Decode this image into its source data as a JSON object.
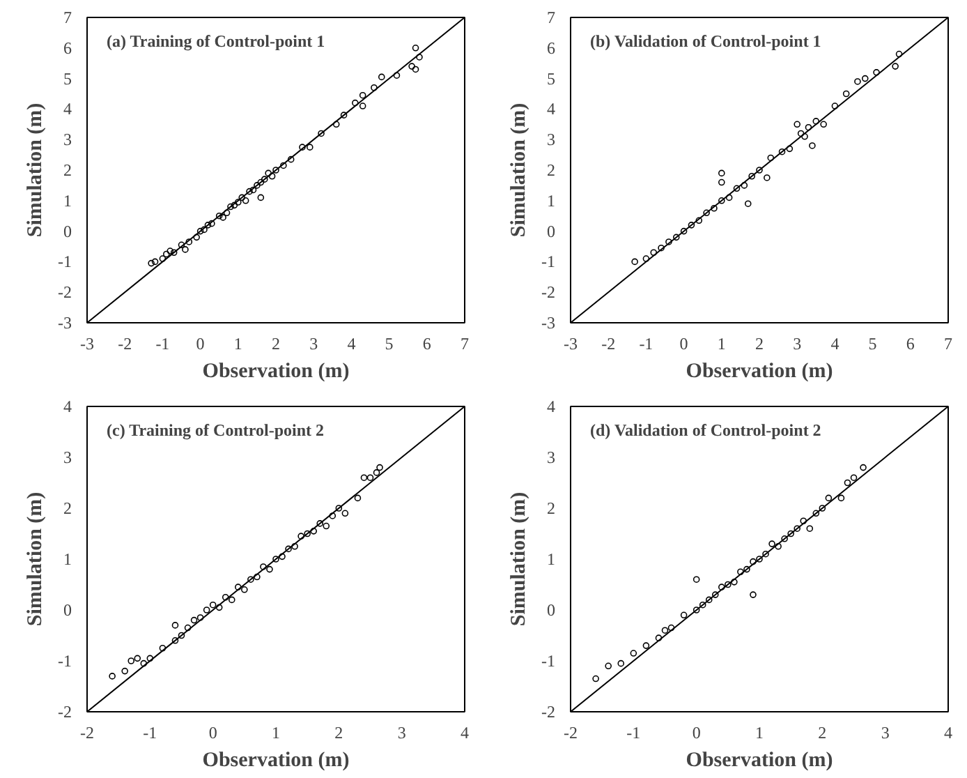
{
  "chart_data": [
    {
      "type": "scatter",
      "title": "(a) Training of Control-point 1",
      "xlabel": "Observation (m)",
      "ylabel": "Simulation (m)",
      "xlim": [
        -3,
        7
      ],
      "ylim": [
        -3,
        7
      ],
      "xticks": [
        -3,
        -2,
        -1,
        0,
        1,
        2,
        3,
        4,
        5,
        6,
        7
      ],
      "yticks": [
        -3,
        -2,
        -1,
        0,
        1,
        2,
        3,
        4,
        5,
        6,
        7
      ],
      "series": [
        {
          "marker": "circle",
          "color": "#000000",
          "x": [
            -1.3,
            -1.2,
            -1.0,
            -0.9,
            -0.8,
            -0.7,
            -0.5,
            -0.4,
            -0.3,
            -0.1,
            0,
            0.1,
            0.2,
            0.3,
            0.5,
            0.6,
            0.7,
            0.8,
            0.9,
            1.0,
            1.1,
            1.2,
            1.3,
            1.4,
            1.5,
            1.6,
            1.6,
            1.7,
            1.8,
            1.9,
            2.0,
            2.2,
            2.4,
            2.7,
            2.9,
            3.2,
            3.6,
            3.8,
            4.1,
            4.3,
            4.3,
            4.6,
            4.8,
            5.2,
            5.6,
            5.7,
            5.7,
            5.8
          ],
          "values": [
            -1.05,
            -1.0,
            -0.9,
            -0.75,
            -0.65,
            -0.7,
            -0.45,
            -0.6,
            -0.35,
            -0.2,
            0,
            0.05,
            0.2,
            0.25,
            0.5,
            0.45,
            0.6,
            0.8,
            0.85,
            0.95,
            1.1,
            1.0,
            1.3,
            1.35,
            1.5,
            1.6,
            1.1,
            1.7,
            1.9,
            1.8,
            2.0,
            2.15,
            2.35,
            2.75,
            2.75,
            3.2,
            3.5,
            3.8,
            4.2,
            4.1,
            4.45,
            4.7,
            5.05,
            5.1,
            5.4,
            5.3,
            6.0,
            5.7
          ]
        },
        {
          "type": "line",
          "color": "#000000",
          "x": [
            -3,
            7
          ],
          "values": [
            -3,
            7
          ]
        }
      ]
    },
    {
      "type": "scatter",
      "title": "(b) Validation of Control-point 1",
      "xlabel": "Observation (m)",
      "ylabel": "Simulation (m)",
      "xlim": [
        -3,
        7
      ],
      "ylim": [
        -3,
        7
      ],
      "xticks": [
        -3,
        -2,
        -1,
        0,
        1,
        2,
        3,
        4,
        5,
        6,
        7
      ],
      "yticks": [
        -3,
        -2,
        -1,
        0,
        1,
        2,
        3,
        4,
        5,
        6,
        7
      ],
      "series": [
        {
          "marker": "circle",
          "color": "#000000",
          "x": [
            -1.3,
            -1.0,
            -0.8,
            -0.6,
            -0.4,
            -0.2,
            0,
            0.2,
            0.4,
            0.6,
            0.8,
            1.0,
            1.0,
            1.0,
            1.2,
            1.4,
            1.6,
            1.7,
            1.8,
            2.0,
            2.2,
            2.3,
            2.6,
            2.8,
            3.0,
            3.1,
            3.2,
            3.3,
            3.4,
            3.5,
            3.7,
            4.0,
            4.3,
            4.6,
            4.8,
            5.1,
            5.6,
            5.7
          ],
          "values": [
            -1.0,
            -0.9,
            -0.7,
            -0.55,
            -0.35,
            -0.2,
            0,
            0.2,
            0.35,
            0.6,
            0.75,
            1.0,
            1.9,
            1.6,
            1.1,
            1.4,
            1.5,
            0.9,
            1.8,
            2.0,
            1.75,
            2.4,
            2.6,
            2.7,
            3.5,
            3.2,
            3.1,
            3.4,
            2.8,
            3.6,
            3.5,
            4.1,
            4.5,
            4.9,
            5.0,
            5.2,
            5.4,
            5.8
          ]
        },
        {
          "type": "line",
          "color": "#000000",
          "x": [
            -3,
            7
          ],
          "values": [
            -3,
            7
          ]
        }
      ]
    },
    {
      "type": "scatter",
      "title": "(c) Training of Control-point 2",
      "xlabel": "Observation (m)",
      "ylabel": "Simulation (m)",
      "xlim": [
        -2,
        4
      ],
      "ylim": [
        -2,
        4
      ],
      "xticks": [
        -2,
        -1,
        0,
        1,
        2,
        3,
        4
      ],
      "yticks": [
        -2,
        -1,
        0,
        1,
        2,
        3,
        4
      ],
      "series": [
        {
          "marker": "circle",
          "color": "#000000",
          "x": [
            -1.6,
            -1.4,
            -1.3,
            -1.2,
            -1.1,
            -1.0,
            -0.8,
            -0.6,
            -0.6,
            -0.5,
            -0.4,
            -0.3,
            -0.2,
            -0.1,
            0,
            0.1,
            0.2,
            0.3,
            0.4,
            0.5,
            0.6,
            0.7,
            0.8,
            0.9,
            1.0,
            1.1,
            1.2,
            1.3,
            1.4,
            1.5,
            1.6,
            1.7,
            1.8,
            1.9,
            2.0,
            2.1,
            2.3,
            2.4,
            2.5,
            2.6,
            2.65
          ],
          "values": [
            -1.3,
            -1.2,
            -1.0,
            -0.95,
            -1.05,
            -0.95,
            -0.75,
            -0.3,
            -0.6,
            -0.5,
            -0.35,
            -0.2,
            -0.15,
            0,
            0.1,
            0.05,
            0.25,
            0.2,
            0.45,
            0.4,
            0.6,
            0.65,
            0.85,
            0.8,
            1.0,
            1.05,
            1.2,
            1.25,
            1.45,
            1.5,
            1.55,
            1.7,
            1.65,
            1.85,
            2.0,
            1.9,
            2.2,
            2.6,
            2.6,
            2.7,
            2.8
          ]
        },
        {
          "type": "line",
          "color": "#000000",
          "x": [
            -2,
            4
          ],
          "values": [
            -2,
            4
          ]
        }
      ]
    },
    {
      "type": "scatter",
      "title": "(d) Validation of Control-point 2",
      "xlabel": "Observation (m)",
      "ylabel": "Simulation (m)",
      "xlim": [
        -2,
        4
      ],
      "ylim": [
        -2,
        4
      ],
      "xticks": [
        -2,
        -1,
        0,
        1,
        2,
        3,
        4
      ],
      "yticks": [
        -2,
        -1,
        0,
        1,
        2,
        3,
        4
      ],
      "series": [
        {
          "marker": "circle",
          "color": "#000000",
          "x": [
            -1.6,
            -1.4,
            -1.2,
            -1.0,
            -0.8,
            -0.6,
            -0.5,
            -0.4,
            -0.2,
            0,
            0,
            0.1,
            0.2,
            0.3,
            0.4,
            0.5,
            0.6,
            0.7,
            0.8,
            0.9,
            0.9,
            1.0,
            1.1,
            1.2,
            1.3,
            1.4,
            1.5,
            1.6,
            1.7,
            1.8,
            1.9,
            2.0,
            2.1,
            2.3,
            2.4,
            2.5,
            2.65
          ],
          "values": [
            -1.35,
            -1.1,
            -1.05,
            -0.85,
            -0.7,
            -0.55,
            -0.4,
            -0.35,
            -0.1,
            0.6,
            0,
            0.1,
            0.2,
            0.3,
            0.45,
            0.5,
            0.55,
            0.75,
            0.8,
            0.3,
            0.95,
            1.0,
            1.1,
            1.3,
            1.25,
            1.4,
            1.5,
            1.6,
            1.75,
            1.6,
            1.9,
            2.0,
            2.2,
            2.2,
            2.5,
            2.6,
            2.8
          ]
        },
        {
          "type": "line",
          "color": "#000000",
          "x": [
            -2,
            4
          ],
          "values": [
            -2,
            4
          ]
        }
      ]
    }
  ]
}
